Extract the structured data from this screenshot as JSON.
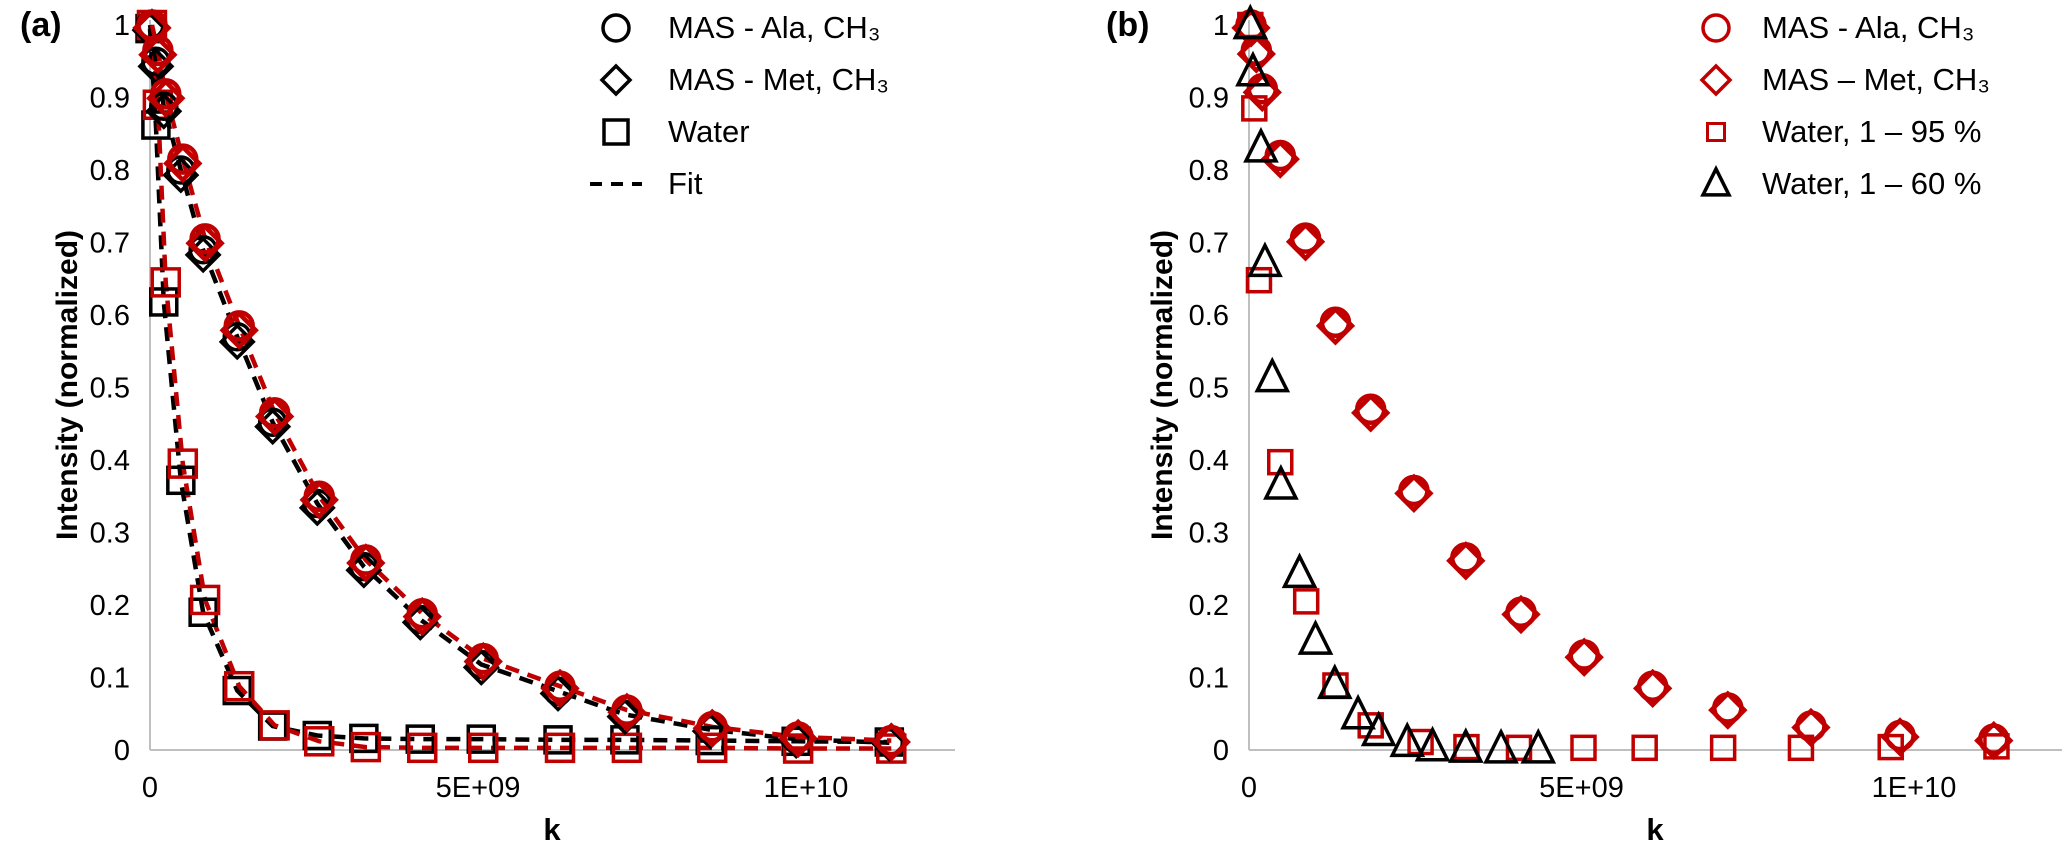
{
  "figure": {
    "background": "#FFFFFF",
    "accent_red": "#C00000",
    "black": "#000000",
    "axis_gray": "#BFBFBF"
  },
  "chart_data": [
    {
      "panel": "a",
      "panel_label": "(a)",
      "type": "scatter",
      "title": "",
      "xlabel": "k",
      "ylabel": "Intensity (normalized)",
      "k_unit": "1e9 (axis shown in scientific notation)",
      "xlim_1e9": [
        0,
        12.3
      ],
      "ylim": [
        0,
        1
      ],
      "grid": false,
      "legend_position": "top-right-inside",
      "x_ticks": [
        {
          "value": 0,
          "label": "0"
        },
        {
          "value": 5,
          "label": "5E+09"
        },
        {
          "value": 10,
          "label": "1E+10"
        }
      ],
      "y_ticks": [
        {
          "value": 1.0,
          "label": "1"
        },
        {
          "value": 0.9,
          "label": "0.9"
        },
        {
          "value": 0.8,
          "label": "0.8"
        },
        {
          "value": 0.7,
          "label": "0.7"
        },
        {
          "value": 0.6,
          "label": "0.6"
        },
        {
          "value": 0.5,
          "label": "0.5"
        },
        {
          "value": 0.4,
          "label": "0.4"
        },
        {
          "value": 0.3,
          "label": "0.3"
        },
        {
          "value": 0.2,
          "label": "0.2"
        },
        {
          "value": 0.1,
          "label": "0.1"
        },
        {
          "value": 0.0,
          "label": "0"
        }
      ],
      "legend": [
        {
          "marker": "circle",
          "color": "#000000",
          "size": 26,
          "label": "MAS - Ala, CH₃"
        },
        {
          "marker": "diamond",
          "color": "#000000",
          "size": 28,
          "label": "MAS - Met, CH₃"
        },
        {
          "marker": "square",
          "color": "#000000",
          "size": 24,
          "label": "Water"
        },
        {
          "marker": "dash",
          "color": "#000000",
          "size": 26,
          "label": "Fit"
        }
      ],
      "series": [
        {
          "name": "Water (black)",
          "marker": "square",
          "color": "#000000",
          "size": 26,
          "stroke_width": 3.5,
          "fit": true,
          "x": [
            0.0,
            0.09,
            0.21,
            0.47,
            0.81,
            1.33,
            1.87,
            2.55,
            3.26,
            4.12,
            5.05,
            6.22,
            7.24,
            8.54,
            9.85,
            11.27
          ],
          "y": [
            0.995,
            0.862,
            0.618,
            0.372,
            0.19,
            0.082,
            0.033,
            0.02,
            0.016,
            0.015,
            0.015,
            0.014,
            0.014,
            0.013,
            0.012,
            0.011
          ]
        },
        {
          "name": "Water (red)",
          "marker": "square",
          "color": "#C00000",
          "size": 27,
          "stroke_width": 3.5,
          "fit": true,
          "x": [
            0.03,
            0.12,
            0.24,
            0.5,
            0.84,
            1.36,
            1.9,
            2.58,
            3.29,
            4.15,
            5.08,
            6.25,
            7.27,
            8.57,
            9.88,
            11.3
          ],
          "y": [
            1.0,
            0.89,
            0.645,
            0.395,
            0.207,
            0.088,
            0.034,
            0.012,
            0.004,
            0.003,
            0.003,
            0.003,
            0.003,
            0.003,
            0.002,
            0.002
          ]
        },
        {
          "name": "MAS - Ala, CH₃ (black)",
          "marker": "circle",
          "color": "#000000",
          "size": 26,
          "stroke_width": 3.5,
          "fit": true,
          "x": [
            0.0,
            0.09,
            0.21,
            0.47,
            0.81,
            1.33,
            1.87,
            2.55,
            3.26,
            4.12,
            5.05,
            6.22,
            7.24,
            8.54,
            9.85,
            11.27
          ],
          "y": [
            1.0,
            0.95,
            0.888,
            0.8,
            0.69,
            0.57,
            0.452,
            0.34,
            0.253,
            0.18,
            0.118,
            0.081,
            0.049,
            0.028,
            0.015,
            0.01
          ]
        },
        {
          "name": "MAS - Met, CH₃ (black)",
          "marker": "diamond",
          "color": "#000000",
          "size": 32,
          "stroke_width": 3.5,
          "fit": false,
          "x": [
            0.0,
            0.09,
            0.21,
            0.47,
            0.81,
            1.33,
            1.87,
            2.55,
            3.26,
            4.12,
            5.05,
            6.22,
            7.24,
            8.54,
            9.85,
            11.27
          ],
          "y": [
            0.993,
            0.943,
            0.881,
            0.793,
            0.683,
            0.563,
            0.446,
            0.334,
            0.248,
            0.176,
            0.114,
            0.078,
            0.046,
            0.026,
            0.013,
            0.009
          ]
        },
        {
          "name": "MAS - Ala, CH₃ (red)",
          "marker": "circle",
          "color": "#C00000",
          "size": 27,
          "stroke_width": 4.5,
          "fit": true,
          "x": [
            0.03,
            0.12,
            0.24,
            0.5,
            0.84,
            1.36,
            1.9,
            2.58,
            3.29,
            4.15,
            5.08,
            6.25,
            7.27,
            8.57,
            9.88,
            11.3
          ],
          "y": [
            1.0,
            0.965,
            0.905,
            0.815,
            0.705,
            0.585,
            0.465,
            0.35,
            0.262,
            0.188,
            0.126,
            0.088,
            0.055,
            0.032,
            0.018,
            0.013
          ]
        },
        {
          "name": "MAS - Met, CH₃ (red)",
          "marker": "diamond",
          "color": "#C00000",
          "size": 33,
          "stroke_width": 4.5,
          "fit": false,
          "x": [
            0.03,
            0.12,
            0.24,
            0.5,
            0.84,
            1.36,
            1.9,
            2.58,
            3.29,
            4.15,
            5.08,
            6.25,
            7.27,
            8.57,
            9.88,
            11.3
          ],
          "y": [
            0.996,
            0.959,
            0.899,
            0.809,
            0.699,
            0.579,
            0.46,
            0.345,
            0.258,
            0.184,
            0.122,
            0.085,
            0.052,
            0.03,
            0.016,
            0.011
          ]
        }
      ]
    },
    {
      "panel": "b",
      "panel_label": "(b)",
      "type": "scatter",
      "title": "",
      "xlabel": "k",
      "ylabel": "Intensity (normalized)",
      "k_unit": "1e9 (axis shown in scientific notation)",
      "xlim_1e9": [
        0,
        12.2
      ],
      "ylim": [
        0,
        1
      ],
      "grid": false,
      "legend_position": "top-right-inside",
      "x_ticks": [
        {
          "value": 0,
          "label": "0"
        },
        {
          "value": 5,
          "label": "5E+09"
        },
        {
          "value": 10,
          "label": "1E+10"
        }
      ],
      "y_ticks": [
        {
          "value": 1.0,
          "label": "1"
        },
        {
          "value": 0.9,
          "label": "0.9"
        },
        {
          "value": 0.8,
          "label": "0.8"
        },
        {
          "value": 0.7,
          "label": "0.7"
        },
        {
          "value": 0.6,
          "label": "0.6"
        },
        {
          "value": 0.5,
          "label": "0.5"
        },
        {
          "value": 0.4,
          "label": "0.4"
        },
        {
          "value": 0.3,
          "label": "0.3"
        },
        {
          "value": 0.2,
          "label": "0.2"
        },
        {
          "value": 0.1,
          "label": "0.1"
        },
        {
          "value": 0.0,
          "label": "0"
        }
      ],
      "legend": [
        {
          "marker": "circle",
          "color": "#C00000",
          "size": 26,
          "label": "MAS - Ala, CH₃"
        },
        {
          "marker": "diamond",
          "color": "#C00000",
          "size": 28,
          "label": "MAS – Met, CH₃"
        },
        {
          "marker": "square",
          "color": "#C00000",
          "size": 17,
          "label": "Water, 1 – 95 %"
        },
        {
          "marker": "triangle",
          "color": "#000000",
          "size": 26,
          "label": "Water, 1 – 60 %"
        }
      ],
      "series": [
        {
          "name": "Water, 1 – 95 % (red)",
          "marker": "square",
          "color": "#C00000",
          "size": 23,
          "stroke_width": 3.5,
          "fit": false,
          "x": [
            0.02,
            0.08,
            0.15,
            0.47,
            0.86,
            1.3,
            1.83,
            2.58,
            3.27,
            4.06,
            5.03,
            5.95,
            7.13,
            8.3,
            9.65,
            11.24
          ],
          "y": [
            1.0,
            0.885,
            0.648,
            0.397,
            0.205,
            0.089,
            0.034,
            0.011,
            0.004,
            0.003,
            0.003,
            0.003,
            0.003,
            0.003,
            0.004,
            0.005
          ]
        },
        {
          "name": "MAS - Ala, CH₃ (red)",
          "marker": "circle",
          "color": "#C00000",
          "size": 27,
          "stroke_width": 4.5,
          "fit": false,
          "x": [
            0.03,
            0.11,
            0.2,
            0.47,
            0.85,
            1.3,
            1.83,
            2.48,
            3.26,
            4.09,
            5.04,
            6.07,
            7.2,
            8.45,
            9.79,
            11.2
          ],
          "y": [
            1.0,
            0.965,
            0.912,
            0.82,
            0.706,
            0.59,
            0.47,
            0.358,
            0.265,
            0.19,
            0.131,
            0.088,
            0.058,
            0.033,
            0.02,
            0.015
          ]
        },
        {
          "name": "MAS – Met, CH₃ (red)",
          "marker": "diamond",
          "color": "#C00000",
          "size": 33,
          "stroke_width": 4.5,
          "fit": false,
          "x": [
            0.03,
            0.11,
            0.2,
            0.47,
            0.85,
            1.3,
            1.83,
            2.48,
            3.26,
            4.09,
            5.04,
            6.07,
            7.2,
            8.45,
            9.79,
            11.2
          ],
          "y": [
            0.996,
            0.96,
            0.907,
            0.815,
            0.701,
            0.585,
            0.465,
            0.354,
            0.261,
            0.187,
            0.128,
            0.085,
            0.055,
            0.031,
            0.018,
            0.013
          ]
        },
        {
          "name": "Water, 1 – 60 % (black)",
          "marker": "triangle",
          "color": "#000000",
          "size": 30,
          "stroke_width": 3.5,
          "fit": false,
          "x": [
            0.02,
            0.06,
            0.18,
            0.24,
            0.35,
            0.48,
            0.76,
            1.0,
            1.29,
            1.64,
            1.95,
            2.38,
            2.76,
            3.26,
            3.79,
            4.35
          ],
          "y": [
            1.0,
            0.935,
            0.83,
            0.672,
            0.513,
            0.365,
            0.243,
            0.151,
            0.09,
            0.048,
            0.025,
            0.01,
            0.004,
            0.002,
            0.001,
            0.001
          ]
        }
      ]
    }
  ]
}
